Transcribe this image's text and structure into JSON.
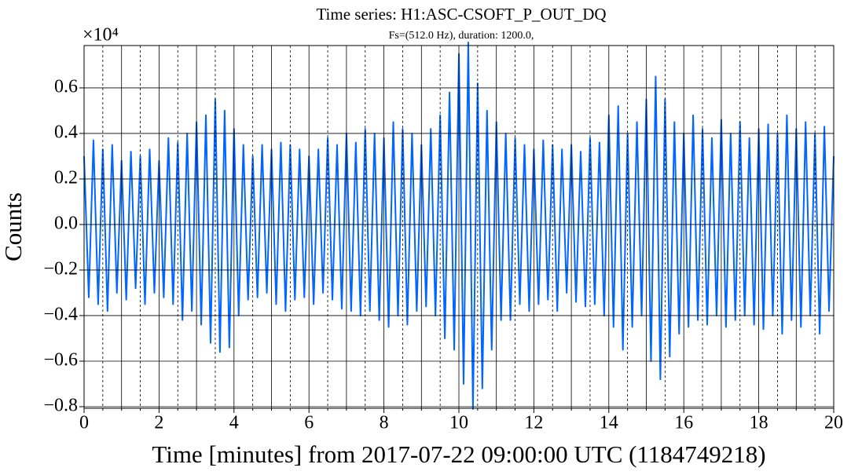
{
  "chart_data": {
    "type": "line",
    "title": "Time series: H1:ASC-CSOFT_P_OUT_DQ",
    "subtitle": "Fs=(512.0 Hz), duration: 1200.0,",
    "xlabel": "Time [minutes] from 2017-07-22 09:00:00 UTC (1184749218)",
    "ylabel": "Counts",
    "y_offset_label": "×10⁴",
    "xlim": [
      0,
      20
    ],
    "xticks": [
      0,
      2,
      4,
      6,
      8,
      10,
      12,
      14,
      16,
      18,
      20
    ],
    "xminorticks": [
      0.5,
      1,
      1.5,
      2.5,
      3,
      3.5,
      4.5,
      5,
      5.5,
      6.5,
      7,
      7.5,
      8.5,
      9,
      9.5,
      10.5,
      11,
      11.5,
      12.5,
      13,
      13.5,
      14.5,
      15,
      15.5,
      16.5,
      17,
      17.5,
      18.5,
      19,
      19.5
    ],
    "ylim": [
      -0.807,
      0.786
    ],
    "yticks": [
      {
        "value": -0.8,
        "label": "−0.8"
      },
      {
        "value": -0.6,
        "label": "−0.6"
      },
      {
        "value": -0.4,
        "label": "−0.4"
      },
      {
        "value": -0.2,
        "label": "−0.2"
      },
      {
        "value": 0,
        "label": "0.0"
      },
      0.2,
      0.4,
      0.6
    ],
    "grid": true,
    "x": [
      0,
      0.125,
      0.25,
      0.375,
      0.5,
      0.625,
      0.75,
      0.875,
      1,
      1.125,
      1.25,
      1.375,
      1.5,
      1.625,
      1.75,
      1.875,
      2,
      2.125,
      2.25,
      2.375,
      2.5,
      2.625,
      2.75,
      2.875,
      3,
      3.125,
      3.25,
      3.375,
      3.5,
      3.625,
      3.75,
      3.875,
      4,
      4.125,
      4.25,
      4.375,
      4.5,
      4.625,
      4.75,
      4.875,
      5,
      5.125,
      5.25,
      5.375,
      5.5,
      5.625,
      5.75,
      5.875,
      6,
      6.125,
      6.25,
      6.375,
      6.5,
      6.625,
      6.75,
      6.875,
      7,
      7.125,
      7.25,
      7.375,
      7.5,
      7.625,
      7.75,
      7.875,
      8,
      8.125,
      8.25,
      8.375,
      8.5,
      8.625,
      8.75,
      8.875,
      9,
      9.125,
      9.25,
      9.375,
      9.5,
      9.625,
      9.75,
      9.875,
      10,
      10.125,
      10.25,
      10.375,
      10.5,
      10.625,
      10.75,
      10.875,
      11,
      11.125,
      11.25,
      11.375,
      11.5,
      11.625,
      11.75,
      11.875,
      12,
      12.125,
      12.25,
      12.375,
      12.5,
      12.625,
      12.75,
      12.875,
      13,
      13.125,
      13.25,
      13.375,
      13.5,
      13.625,
      13.75,
      13.875,
      14,
      14.125,
      14.25,
      14.375,
      14.5,
      14.625,
      14.75,
      14.875,
      15,
      15.125,
      15.25,
      15.375,
      15.5,
      15.625,
      15.75,
      15.875,
      16,
      16.125,
      16.25,
      16.375,
      16.5,
      16.625,
      16.75,
      16.875,
      17,
      17.125,
      17.25,
      17.375,
      17.5,
      17.625,
      17.75,
      17.875,
      18,
      18.125,
      18.25,
      18.375,
      18.5,
      18.625,
      18.75,
      18.875,
      19,
      19.125,
      19.25,
      19.375,
      19.5,
      19.625,
      19.75,
      19.875,
      20
    ],
    "series": [
      {
        "color": "#0066ff",
        "values": [
          0.3,
          -0.32,
          0.37,
          -0.35,
          0.33,
          -0.38,
          0.35,
          -0.3,
          0.28,
          -0.33,
          0.32,
          -0.28,
          0.3,
          -0.35,
          0.33,
          -0.3,
          0.28,
          -0.32,
          0.38,
          -0.35,
          0.36,
          -0.42,
          0.4,
          -0.38,
          0.45,
          -0.44,
          0.48,
          -0.52,
          0.55,
          -0.56,
          0.5,
          -0.54,
          0.42,
          -0.4,
          0.35,
          -0.33,
          0.3,
          -0.32,
          0.35,
          -0.3,
          0.33,
          -0.35,
          0.36,
          -0.38,
          0.35,
          -0.33,
          0.33,
          -0.32,
          0.3,
          -0.35,
          0.33,
          -0.3,
          0.38,
          -0.33,
          0.35,
          -0.37,
          0.4,
          -0.38,
          0.36,
          -0.4,
          0.42,
          -0.38,
          0.4,
          -0.42,
          0.38,
          -0.45,
          0.45,
          -0.4,
          0.42,
          -0.44,
          0.4,
          -0.38,
          0.35,
          -0.36,
          0.42,
          -0.4,
          0.48,
          -0.5,
          0.58,
          -0.55,
          0.75,
          -0.7,
          0.8,
          -0.81,
          0.62,
          -0.72,
          0.5,
          -0.55,
          0.45,
          -0.42,
          0.4,
          -0.42,
          0.38,
          -0.35,
          0.35,
          -0.38,
          0.33,
          -0.35,
          0.37,
          -0.33,
          0.35,
          -0.38,
          0.33,
          -0.3,
          0.35,
          -0.34,
          0.32,
          -0.36,
          0.38,
          -0.35,
          0.36,
          -0.4,
          0.48,
          -0.45,
          0.52,
          -0.55,
          0.4,
          -0.45,
          0.45,
          -0.4,
          0.55,
          -0.6,
          0.65,
          -0.68,
          0.55,
          -0.58,
          0.45,
          -0.48,
          0.4,
          -0.45,
          0.48,
          -0.42,
          0.42,
          -0.44,
          0.38,
          -0.4,
          0.46,
          -0.45,
          0.4,
          -0.42,
          0.45,
          -0.4,
          0.38,
          -0.44,
          0.42,
          -0.46,
          0.44,
          -0.4,
          0.4,
          -0.48,
          0.48,
          -0.42,
          0.42,
          -0.45,
          0.45,
          -0.4,
          0.4,
          -0.48,
          0.43,
          -0.38,
          0.3
        ]
      }
    ]
  }
}
